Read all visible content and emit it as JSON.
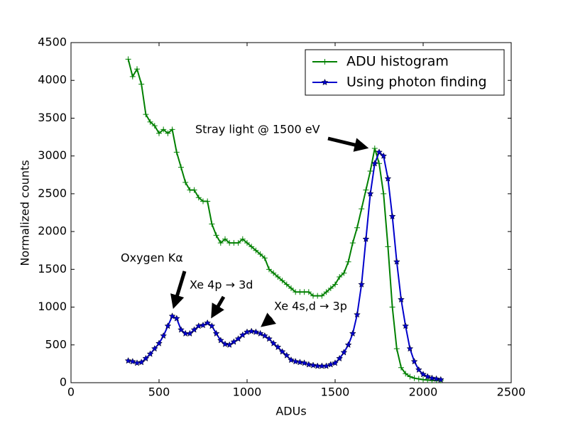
{
  "chart_data": {
    "type": "line",
    "xlabel": "ADUs",
    "ylabel": "Normalized counts",
    "x": [
      325,
      350,
      375,
      400,
      425,
      450,
      475,
      500,
      525,
      550,
      575,
      600,
      625,
      650,
      675,
      700,
      725,
      750,
      775,
      800,
      825,
      850,
      875,
      900,
      925,
      950,
      975,
      1000,
      1025,
      1050,
      1075,
      1100,
      1125,
      1150,
      1175,
      1200,
      1225,
      1250,
      1275,
      1300,
      1325,
      1350,
      1375,
      1400,
      1425,
      1450,
      1475,
      1500,
      1525,
      1550,
      1575,
      1600,
      1625,
      1650,
      1675,
      1700,
      1725,
      1750,
      1775,
      1800,
      1825,
      1850,
      1875,
      1900,
      1925,
      1950,
      1975,
      2000,
      2025,
      2050,
      2075,
      2100
    ],
    "series": [
      {
        "name": "ADU histogram",
        "color": "#008000",
        "marker": "plus",
        "values": [
          4280,
          4050,
          4150,
          3950,
          3550,
          3450,
          3400,
          3300,
          3350,
          3300,
          3350,
          3050,
          2850,
          2650,
          2550,
          2550,
          2450,
          2400,
          2400,
          2100,
          1950,
          1850,
          1900,
          1850,
          1850,
          1850,
          1900,
          1850,
          1800,
          1750,
          1700,
          1650,
          1500,
          1450,
          1400,
          1350,
          1300,
          1250,
          1200,
          1200,
          1200,
          1200,
          1150,
          1150,
          1150,
          1200,
          1250,
          1300,
          1400,
          1450,
          1600,
          1850,
          2050,
          2300,
          2550,
          2800,
          3100,
          2900,
          2500,
          1800,
          1000,
          450,
          200,
          120,
          80,
          60,
          50,
          40,
          35,
          30,
          30,
          30
        ]
      },
      {
        "name": "Using photon finding",
        "color": "#0000cc",
        "marker": "star",
        "values": [
          290,
          280,
          260,
          270,
          320,
          380,
          450,
          520,
          620,
          750,
          880,
          850,
          700,
          650,
          650,
          700,
          750,
          760,
          790,
          750,
          650,
          560,
          510,
          500,
          540,
          580,
          630,
          670,
          680,
          670,
          650,
          620,
          580,
          520,
          470,
          410,
          360,
          300,
          280,
          270,
          260,
          240,
          230,
          220,
          220,
          220,
          240,
          260,
          320,
          400,
          500,
          650,
          900,
          1300,
          1900,
          2500,
          2900,
          3050,
          3000,
          2700,
          2200,
          1600,
          1100,
          750,
          450,
          280,
          170,
          110,
          80,
          60,
          50,
          40
        ]
      }
    ],
    "xlim": [
      0,
      2500
    ],
    "xticks": [
      0,
      500,
      1000,
      1500,
      2000,
      2500
    ],
    "ylim": [
      0,
      4500
    ],
    "yticks": [
      0,
      500,
      1000,
      1500,
      2000,
      2500,
      3000,
      3500,
      4000,
      4500
    ],
    "grid": false,
    "legend": "upper right",
    "annotations": [
      "Stray light @ 1500 eV",
      "Oxygen Kα",
      "Xe 4p → 3d",
      "Xe 4s,d → 3p"
    ]
  }
}
